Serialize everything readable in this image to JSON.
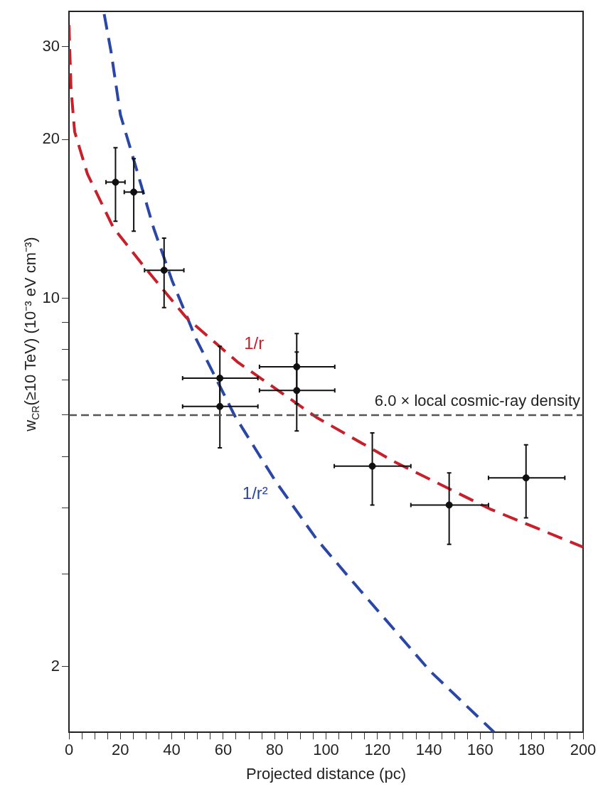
{
  "chart_data": {
    "type": "scatter",
    "xlabel": "Projected distance (pc)",
    "ylabel": "w$_{CR}$(≥10 TeV) (10⁻³ eV cm⁻³)",
    "log": "y",
    "grid": false,
    "legend": false,
    "xlim": [
      0,
      200
    ],
    "xticks": [
      0,
      {
        "value": 5,
        "label": null
      },
      {
        "value": 10,
        "label": null
      },
      {
        "value": 15,
        "label": null
      },
      20,
      {
        "value": 25,
        "label": null
      },
      {
        "value": 30,
        "label": null
      },
      {
        "value": 35,
        "label": null
      },
      40,
      {
        "value": 45,
        "label": null
      },
      {
        "value": 50,
        "label": null
      },
      {
        "value": 55,
        "label": null
      },
      60,
      {
        "value": 65,
        "label": null
      },
      {
        "value": 70,
        "label": null
      },
      {
        "value": 75,
        "label": null
      },
      80,
      {
        "value": 85,
        "label": null
      },
      {
        "value": 90,
        "label": null
      },
      {
        "value": 95,
        "label": null
      },
      100,
      {
        "value": 105,
        "label": null
      },
      {
        "value": 110,
        "label": null
      },
      {
        "value": 115,
        "label": null
      },
      120,
      {
        "value": 125,
        "label": null
      },
      {
        "value": 130,
        "label": null
      },
      {
        "value": 135,
        "label": null
      },
      140,
      {
        "value": 145,
        "label": null
      },
      {
        "value": 150,
        "label": null
      },
      {
        "value": 155,
        "label": null
      },
      160,
      {
        "value": 165,
        "label": null
      },
      {
        "value": 170,
        "label": null
      },
      {
        "value": 175,
        "label": null
      },
      180,
      {
        "value": 185,
        "label": null
      },
      {
        "value": 190,
        "label": null
      },
      {
        "value": 195,
        "label": null
      },
      200
    ],
    "ylim": [
      1.5,
      35
    ],
    "yticks": [
      2,
      {
        "value": 3,
        "label": null
      },
      {
        "value": 4,
        "label": null
      },
      {
        "value": 5,
        "label": null
      },
      {
        "value": 6,
        "label": null
      },
      {
        "value": 7,
        "label": null
      },
      {
        "value": 8,
        "label": null
      },
      {
        "value": 9,
        "label": null
      },
      10,
      20,
      30
    ],
    "series": [
      {
        "type": "scatter",
        "color": "#111111",
        "marker": "circle",
        "x": [
          18.1,
          25.2,
          37.0,
          58.7,
          58.7,
          88.6,
          88.6,
          118,
          147.9,
          177.8
        ],
        "values": [
          16.6,
          15.9,
          11.3,
          7.05,
          6.23,
          7.41,
          6.68,
          4.8,
          4.05,
          4.56
        ],
        "errors": [
          [
            14.0,
            19.3
          ],
          [
            13.4,
            18.4
          ],
          [
            9.6,
            13.0
          ],
          [
            6.2,
            8.1
          ],
          [
            5.2,
            7.0
          ],
          [
            6.3,
            8.57
          ],
          [
            5.6,
            7.9
          ],
          [
            4.05,
            5.55
          ],
          [
            3.41,
            4.66
          ],
          [
            3.83,
            5.27
          ]
        ],
        "xerrors": [
          [
            14.4,
            21.8
          ],
          [
            21.5,
            28.9
          ],
          [
            29.4,
            44.7
          ],
          [
            44.2,
            73.5
          ],
          [
            44.2,
            73.5
          ],
          [
            74.1,
            103.4
          ],
          [
            74.1,
            103.4
          ],
          [
            103.2,
            133
          ],
          [
            133,
            163.2
          ],
          [
            163.2,
            192.9
          ]
        ]
      },
      {
        "type": "line",
        "name": "1/r",
        "color": "#c8202a",
        "line_style": "dashed",
        "x": [
          0,
          0.8,
          2.2,
          7.2,
          17.3,
          29.1,
          45.5,
          65.8,
          96.3,
          126.7,
          163.8,
          200
        ],
        "values": [
          33,
          25,
          20.7,
          17.2,
          13.6,
          11.5,
          9.2,
          7.55,
          5.94,
          4.89,
          3.98,
          3.37
        ]
      },
      {
        "type": "line",
        "name": "1/r²",
        "color": "#2a47a8",
        "line_style": "dashed",
        "x": [
          13.7,
          16.4,
          20.0,
          25.5,
          32.9,
          40.1,
          49.4,
          64.5,
          80.4,
          96.3,
          111.1,
          140.5,
          165.4
        ],
        "values": [
          34.6,
          29.3,
          22.3,
          18.1,
          13.6,
          10.8,
          8.38,
          5.98,
          4.49,
          3.49,
          2.87,
          1.96,
          1.5
        ]
      }
    ],
    "ref_lines": [
      {
        "axis": "y",
        "value": 6.0,
        "label": "6.0 × local cosmic-ray density",
        "color": "#555555",
        "line_style": "dashed"
      }
    ]
  }
}
